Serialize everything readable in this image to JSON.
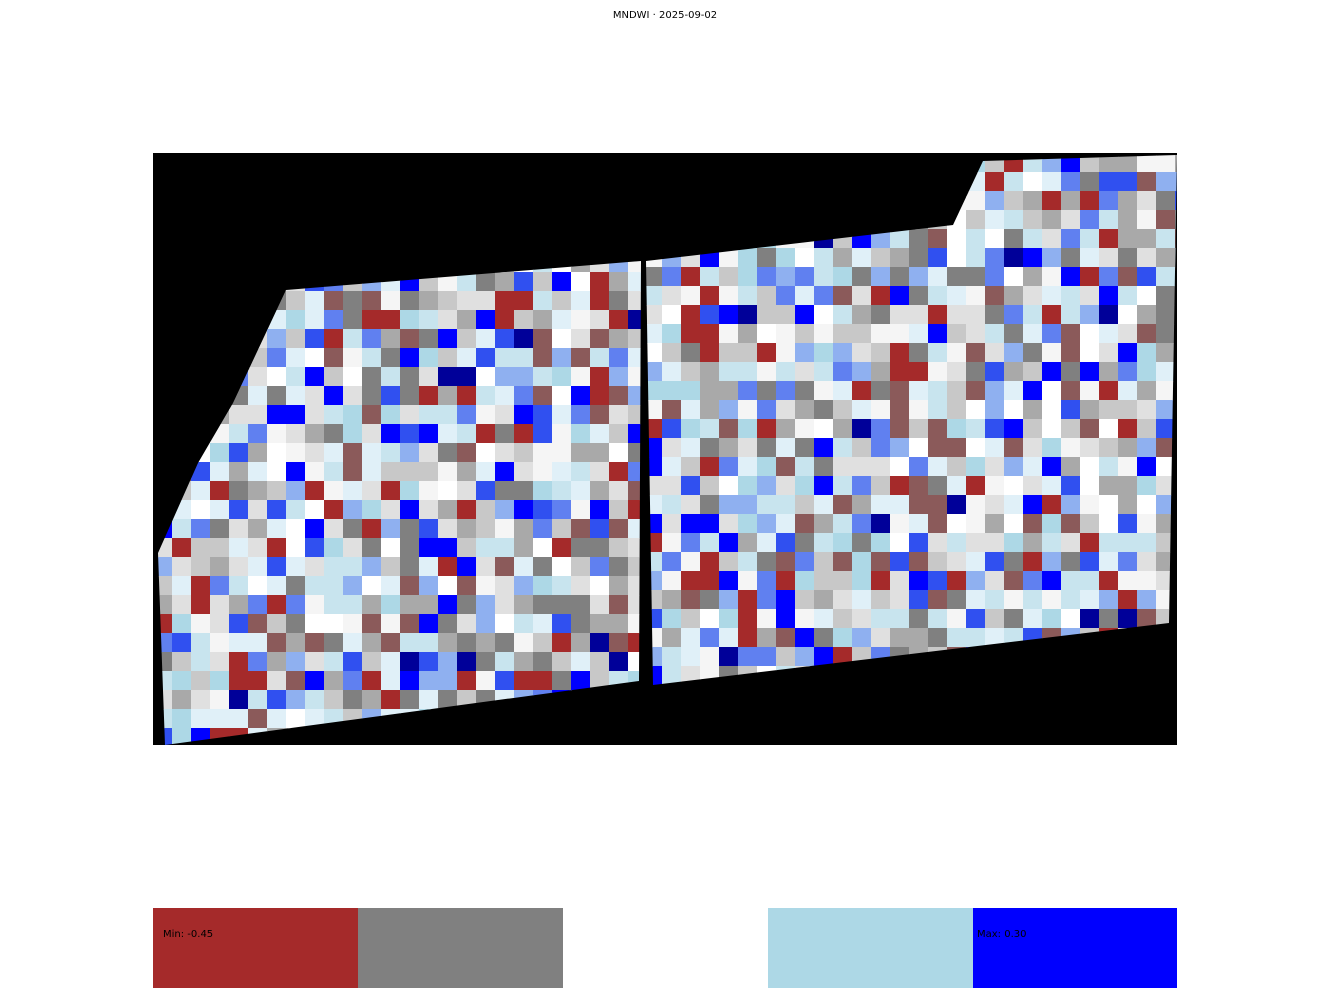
{
  "title": "MNDWI · 2025-09-02",
  "legend": {
    "min_label": "Min: -0.45",
    "max_label": "Max: 0.30",
    "classes": [
      {
        "color": "#a52a2a"
      },
      {
        "color": "#808080"
      },
      {
        "color": "#ffffff"
      },
      {
        "color": "#add8e6"
      },
      {
        "color": "#0000ff"
      }
    ]
  },
  "map": {
    "background": "#000000",
    "palette": [
      "#a52a2a",
      "#8b5a5a",
      "#808080",
      "#a9a9a9",
      "#c8c8c8",
      "#e0e0e0",
      "#f5f5f5",
      "#ffffff",
      "#e0f0f8",
      "#c8e4ee",
      "#add8e6",
      "#8fb0f0",
      "#6080f0",
      "#3050f0",
      "#0000ff",
      "#000099"
    ]
  }
}
